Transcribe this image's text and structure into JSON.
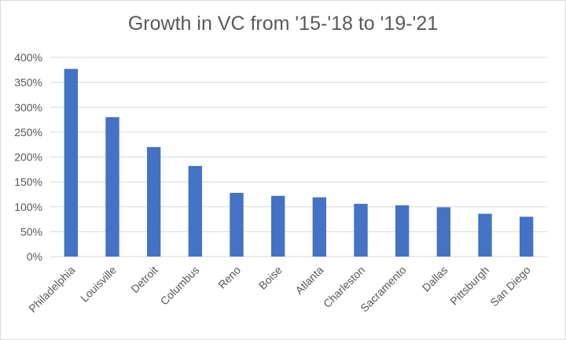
{
  "chart_data": {
    "type": "bar",
    "title": "Growth in VC from '15-'18 to '19-'21",
    "xlabel": "",
    "ylabel": "",
    "categories": [
      "Philadelphia",
      "Louisville",
      "Detroit",
      "Columbus",
      "Reno",
      "Boise",
      "Atlanta",
      "Charleston",
      "Sacramento",
      "Dallas",
      "Pittsburgh",
      "San Diego"
    ],
    "values": [
      377,
      280,
      220,
      182,
      128,
      122,
      119,
      106,
      103,
      99,
      86,
      80
    ],
    "value_unit": "%",
    "ylim": [
      0,
      400
    ],
    "yticks": [
      "0%",
      "50%",
      "100%",
      "150%",
      "200%",
      "250%",
      "300%",
      "350%",
      "400%"
    ],
    "grid": true,
    "legend": "none",
    "colors": {
      "bar": "#4472c4",
      "grid": "#d9d9d9",
      "text": "#595959"
    }
  }
}
